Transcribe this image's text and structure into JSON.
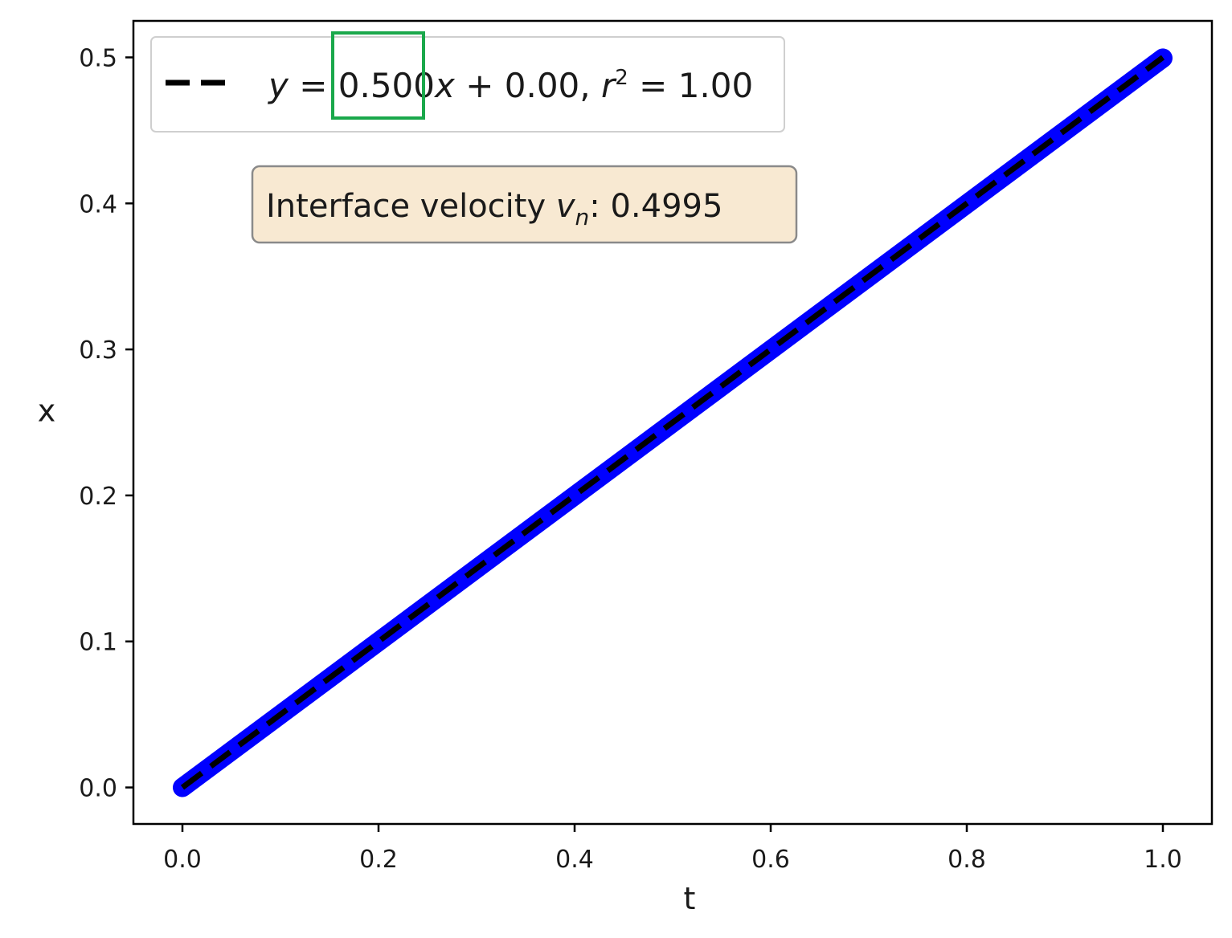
{
  "chart_data": {
    "type": "line",
    "xlabel": "t",
    "ylabel": "x",
    "xlim": [
      -0.05,
      1.05
    ],
    "ylim": [
      -0.025,
      0.525
    ],
    "xticks": [
      "0.0",
      "0.2",
      "0.4",
      "0.6",
      "0.8",
      "1.0"
    ],
    "yticks": [
      "0.0",
      "0.1",
      "0.2",
      "0.3",
      "0.4",
      "0.5"
    ],
    "grid": false,
    "series": [
      {
        "style": "solid-thick",
        "color": "#0000ff",
        "x": [
          0.0,
          1.0
        ],
        "y": [
          0.0,
          0.4995
        ]
      },
      {
        "name": "y = 0.500x + 0.00, r² = 1.00",
        "style": "dashed",
        "color": "#000000",
        "x": [
          0.0,
          1.0
        ],
        "y": [
          0.0,
          0.5
        ]
      }
    ],
    "legend": {
      "placement": "top-left",
      "parts": {
        "y": "y",
        "eq": " = ",
        "slope": "0.500",
        "xvar": "x",
        "plus": " + 0.00, ",
        "r": "r",
        "exp": "2",
        "rest": " = 1.00"
      }
    },
    "annotation": {
      "prefix": "Interface velocity ",
      "v": "v",
      "sub": "n",
      "colon": ": ",
      "value": "0.4995",
      "bg": "#f8e9d2"
    },
    "highlight": {
      "target": "slope",
      "color": "#1aa84b"
    }
  }
}
